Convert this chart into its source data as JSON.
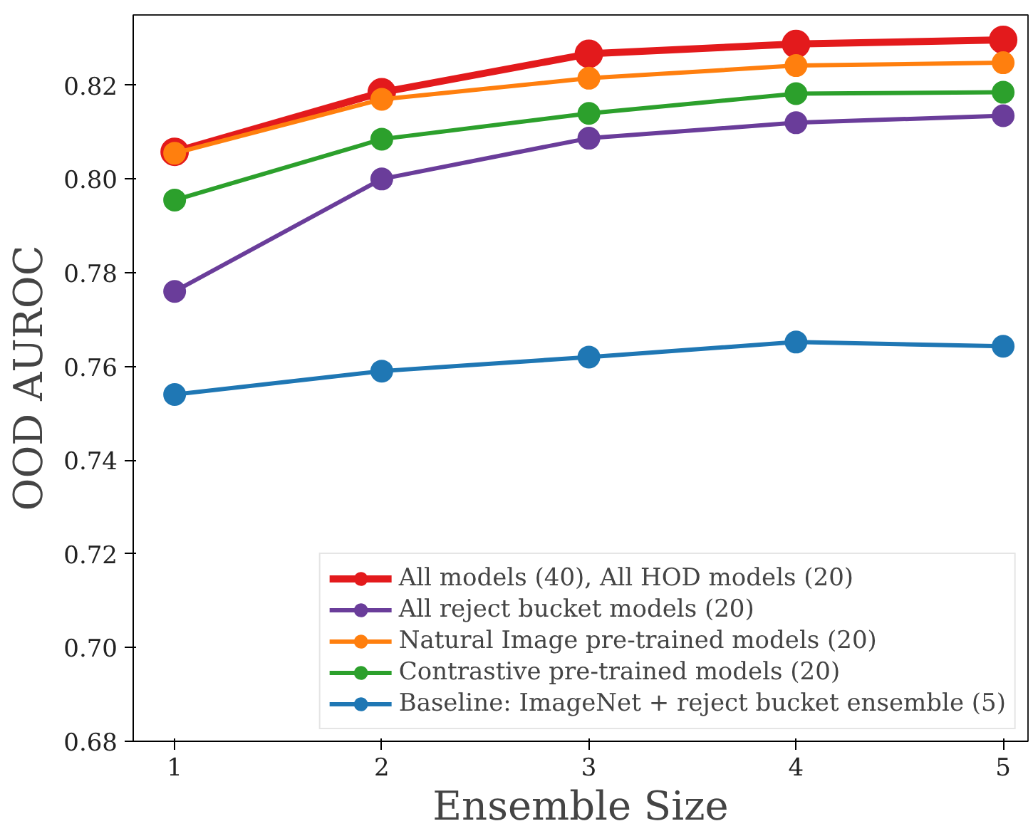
{
  "chart_data": {
    "type": "line",
    "xlabel": "Ensemble Size",
    "ylabel": "OOD AUROC",
    "x": [
      1,
      2,
      3,
      4,
      5
    ],
    "xlim": [
      0.8,
      5.12
    ],
    "ylim": [
      0.68,
      0.835
    ],
    "xticks": [
      1,
      2,
      3,
      4,
      5
    ],
    "yticks": [
      {
        "value": 0.68,
        "label": "0.68"
      },
      {
        "value": 0.7,
        "label": "0.70"
      },
      {
        "value": 0.72,
        "label": "0.72"
      },
      {
        "value": 0.74,
        "label": "0.74"
      },
      {
        "value": 0.76,
        "label": "0.76"
      },
      {
        "value": 0.78,
        "label": "0.78"
      },
      {
        "value": 0.8,
        "label": "0.80"
      },
      {
        "value": 0.82,
        "label": "0.82"
      }
    ],
    "marker": "circle",
    "line_style": "solid",
    "grid": false,
    "legend": "bottom right",
    "series": [
      {
        "name": "All models (40), All HOD models (20)",
        "color": "#e31a1c",
        "values": [
          0.8058,
          0.8185,
          0.8267,
          0.8288,
          0.8297
        ]
      },
      {
        "name": "All reject bucket models (20)",
        "color": "#6a3d9a",
        "values": [
          0.776,
          0.8,
          0.8087,
          0.812,
          0.8135
        ]
      },
      {
        "name": "Natural Image pre-trained models (20)",
        "color": "#ff7f0e",
        "values": [
          0.8055,
          0.817,
          0.8215,
          0.8242,
          0.8248
        ]
      },
      {
        "name": "Contrastive pre-trained models (20)",
        "color": "#2ca02c",
        "values": [
          0.7955,
          0.8085,
          0.814,
          0.8182,
          0.8185
        ]
      },
      {
        "name": "Baseline: ImageNet + reject bucket ensemble (5)",
        "color": "#1f77b4",
        "values": [
          0.754,
          0.759,
          0.762,
          0.7652,
          0.7643
        ]
      }
    ]
  }
}
